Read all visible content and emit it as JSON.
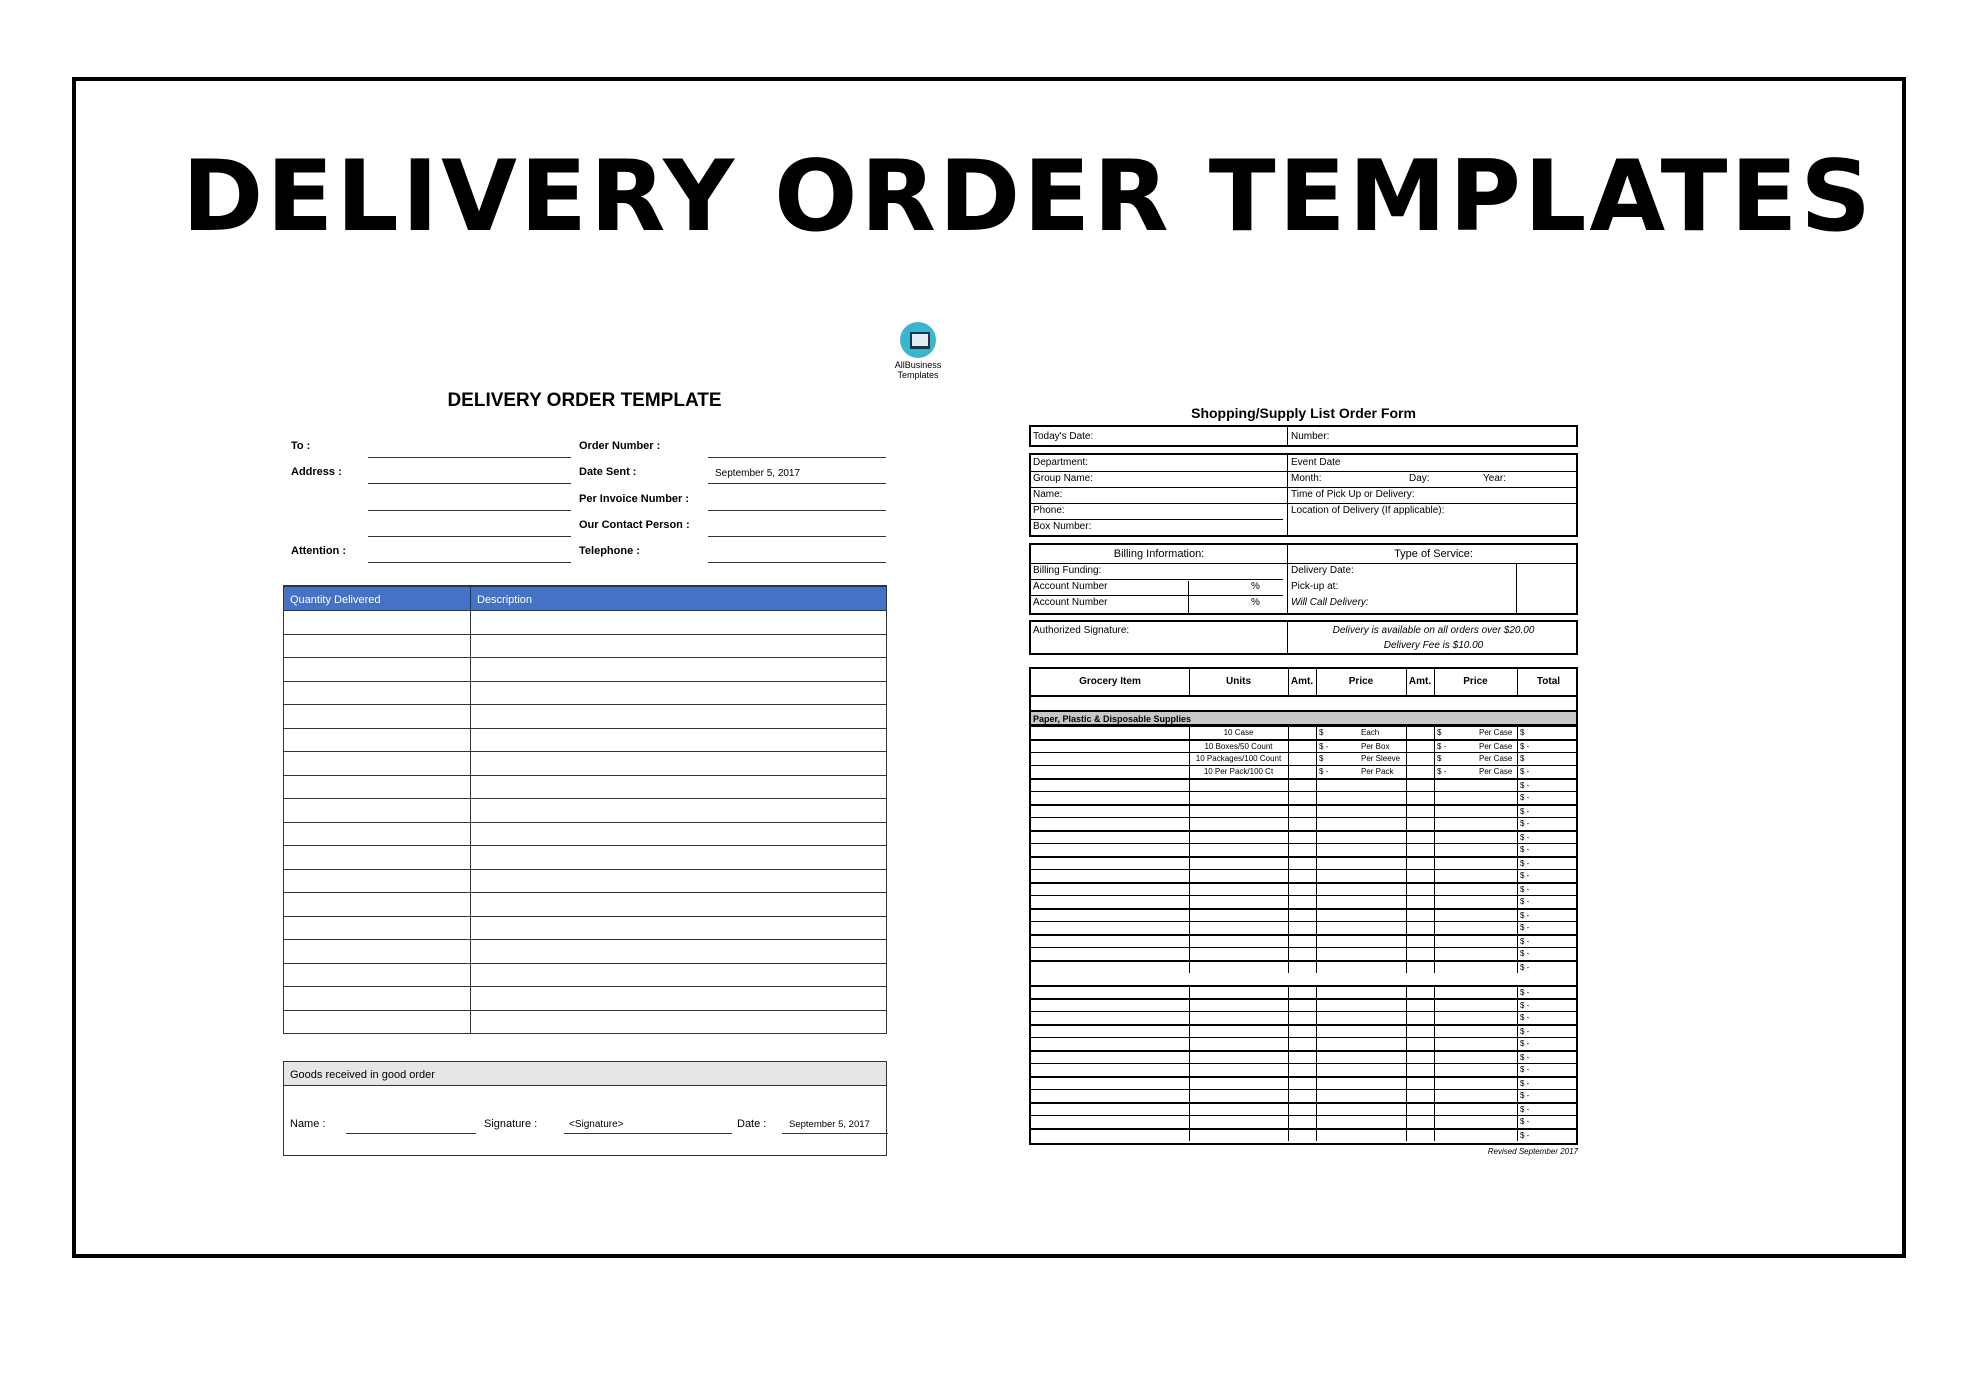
{
  "title": "DELIVERY ORDER TEMPLATES",
  "logo": {
    "line1": "AllBusiness",
    "line2": "Templates",
    "color": "#3bb4d0"
  },
  "left_form": {
    "title": "DELIVERY ORDER TEMPLATE",
    "fields_left": [
      {
        "label": "To :",
        "value": ""
      },
      {
        "label": "Address :",
        "value": ""
      },
      {
        "label": "",
        "value": ""
      },
      {
        "label": "",
        "value": ""
      },
      {
        "label": "Attention :",
        "value": ""
      }
    ],
    "fields_right": [
      {
        "label": "Order Number :",
        "value": ""
      },
      {
        "label": "Date Sent :",
        "value": "September 5, 2017"
      },
      {
        "label": "Per Invoice Number :",
        "value": ""
      },
      {
        "label": "Our Contact Person :",
        "value": ""
      },
      {
        "label": "Telephone :",
        "value": ""
      }
    ],
    "table": {
      "headers": [
        "Quantity Delivered",
        "Description"
      ],
      "row_count": 18,
      "header_color": "#4472c4"
    },
    "goods": {
      "heading": "Goods received in good order",
      "name_label": "Name :",
      "name_value": "",
      "signature_label": "Signature :",
      "signature_value": "<Signature>",
      "date_label": "Date :",
      "date_value": "September 5, 2017"
    }
  },
  "right_form": {
    "title": "Shopping/Supply List Order Form",
    "todays_date": "Today's Date:",
    "number": "Number:",
    "info_left": [
      "Department:",
      "Group Name:",
      "Name:",
      "Phone:",
      "Box Number:"
    ],
    "event_date": "Event Date",
    "month": "Month:",
    "day": "Day:",
    "year": "Year:",
    "time": "Time of Pick Up or Delivery:",
    "location": "Location of Delivery (If applicable):",
    "billing_header": "Billing Information:",
    "service_header": "Type of Service:",
    "billing_rows": [
      {
        "label": "Billing Funding:",
        "value": ""
      },
      {
        "label": "Account Number",
        "value": "%"
      },
      {
        "label": "Account Number",
        "value": "%"
      }
    ],
    "service_rows": [
      "Delivery Date:",
      "Pick-up at:",
      "Will Call Delivery:"
    ],
    "authorized": "Authorized Signature:",
    "note1": "Delivery is available on all orders over $20.00",
    "note2": "Delivery Fee is $10.00",
    "grocery_headers": [
      "Grocery Item",
      "Units",
      "Amt.",
      "Price",
      "Amt.",
      "Price",
      "Total"
    ],
    "section": "Paper, Plastic & Disposable Supplies",
    "items": [
      {
        "units": "10 Case",
        "price1": "$",
        "unit1": "Each",
        "price2": "$",
        "unit2": "Per Case",
        "total": "$"
      },
      {
        "units": "10 Boxes/50 Count",
        "price1": "$   -",
        "unit1": "Per Box",
        "price2": "$   -",
        "unit2": "Per Case",
        "total": "$   -"
      },
      {
        "units": "10 Packages/100 Count",
        "price1": "$",
        "unit1": "Per Sleeve",
        "price2": "$",
        "unit2": "Per Case",
        "total": "$"
      },
      {
        "units": "10 Per Pack/100 Ct",
        "price1": "$   -",
        "unit1": "Per Pack",
        "price2": "$   -",
        "unit2": "Per Case",
        "total": "$   -"
      }
    ],
    "empty_total": "$   -",
    "group1_empty_rows": 15,
    "group2_rows": 12,
    "footer": "Revised September 2017"
  }
}
